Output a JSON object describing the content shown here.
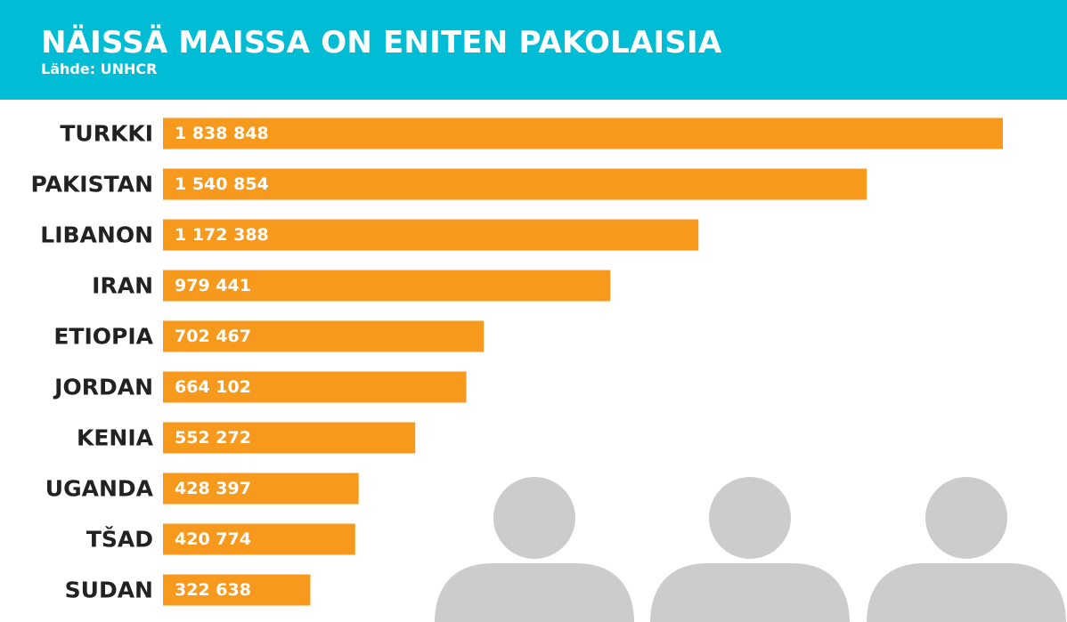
{
  "header": {
    "title": "NÄISSÄ MAISSA ON ENITEN PAKOLAISIA",
    "source": "Lähde: UNHCR"
  },
  "colors": {
    "header_bg": "#00bcd4",
    "bar": "#f7991c",
    "silhouette": "#cccccc"
  },
  "chart_data": {
    "type": "bar",
    "orientation": "horizontal",
    "title": "NÄISSÄ MAISSA ON ENITEN PAKOLAISIA",
    "subtitle": "Lähde: UNHCR",
    "xlabel": "",
    "ylabel": "",
    "categories": [
      "TURKKI",
      "PAKISTAN",
      "LIBANON",
      "IRAN",
      "ETIOPIA",
      "JORDAN",
      "KENIA",
      "UGANDA",
      "TŠAD",
      "SUDAN"
    ],
    "values": [
      1838848,
      1540854,
      1172388,
      979441,
      702467,
      664102,
      552272,
      428397,
      420774,
      322638
    ],
    "value_labels": [
      "1 838 848",
      "1 540 854",
      "1 172 388",
      "979 441",
      "702 467",
      "664 102",
      "552 272",
      "428 397",
      "420 774",
      "322 638"
    ],
    "xlim": [
      0,
      1838848
    ],
    "grid": false,
    "legend": "none"
  },
  "decoration": {
    "icon": "people-silhouette-icon",
    "count": 3
  }
}
